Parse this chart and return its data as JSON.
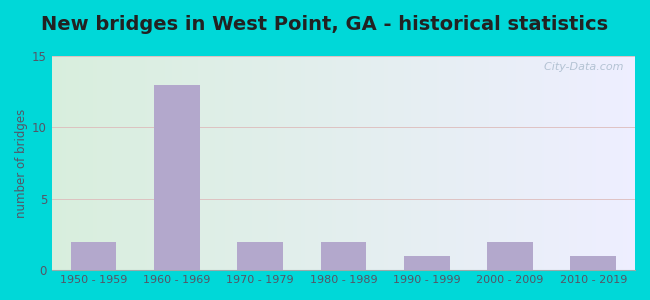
{
  "title": "New bridges in West Point, GA - historical statistics",
  "categories": [
    "1950 - 1959",
    "1960 - 1969",
    "1970 - 1979",
    "1980 - 1989",
    "1990 - 1999",
    "2000 - 2009",
    "2010 - 2019"
  ],
  "values": [
    2,
    13,
    2,
    2,
    1,
    2,
    1
  ],
  "bar_color": "#b3a8cc",
  "ylabel": "number of bridges",
  "ylabel_color": "#555566",
  "ylim": [
    0,
    15
  ],
  "yticks": [
    0,
    5,
    10,
    15
  ],
  "background_outer": "#00d8d8",
  "bg_color_left": "#d8eedd",
  "bg_color_right": "#eeeeff",
  "title_fontsize": 14,
  "title_color": "#222222",
  "watermark": "  City-Data.com",
  "watermark_color": "#aabbcc",
  "tick_color": "#555566",
  "grid_color": "#ddbbbb",
  "bar_width": 0.55
}
